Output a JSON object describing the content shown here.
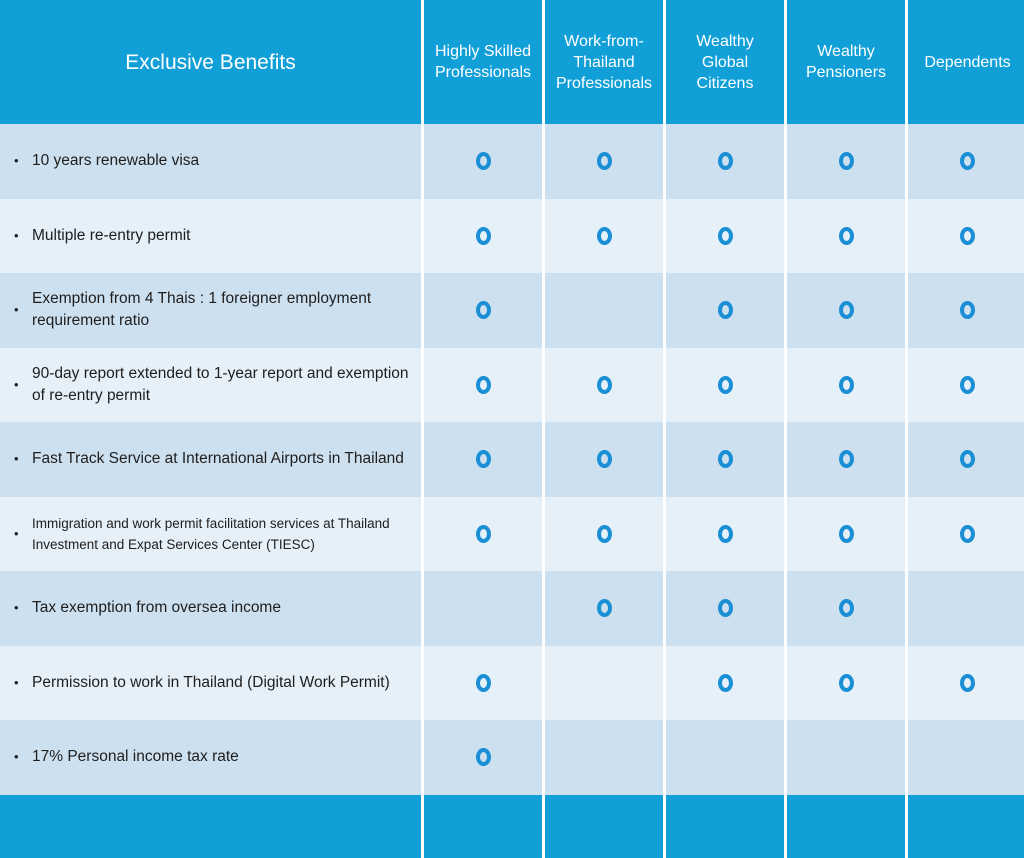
{
  "header": {
    "title": "Exclusive Benefits",
    "columns": [
      "Highly Skilled Professionals",
      "Work-from-Thailand Professionals",
      "Wealthy Global Citizens",
      "Wealthy Pensioners",
      "Dependents"
    ]
  },
  "rows": [
    {
      "label": "10 years renewable visa",
      "marks": [
        true,
        true,
        true,
        true,
        true
      ]
    },
    {
      "label": "Multiple re-entry permit",
      "marks": [
        true,
        true,
        true,
        true,
        true
      ]
    },
    {
      "label": "Exemption from 4 Thais : 1 foreigner employment requirement ratio",
      "marks": [
        true,
        false,
        true,
        true,
        true
      ]
    },
    {
      "label": "90-day report extended to 1-year report and exemption of re-entry permit",
      "marks": [
        true,
        true,
        true,
        true,
        true
      ]
    },
    {
      "label": "Fast Track Service at International Airports in Thailand",
      "marks": [
        true,
        true,
        true,
        true,
        true
      ]
    },
    {
      "label": "Immigration and work permit facilitation services at Thailand Investment and Expat Services Center (TIESC)",
      "marks": [
        true,
        true,
        true,
        true,
        true
      ]
    },
    {
      "label": "Tax exemption from oversea income",
      "marks": [
        false,
        true,
        true,
        true,
        false
      ]
    },
    {
      "label": "Permission to work in Thailand (Digital Work Permit)",
      "marks": [
        true,
        false,
        true,
        true,
        true
      ]
    },
    {
      "label": "17% Personal income tax rate",
      "marks": [
        true,
        false,
        false,
        false,
        false
      ]
    }
  ],
  "mark_symbol": "o-icon",
  "colors": {
    "header_bg": "#119fd8",
    "row_dark": "#cde0ef",
    "row_light": "#e6f0f8",
    "mark": "#1a8fd6"
  }
}
